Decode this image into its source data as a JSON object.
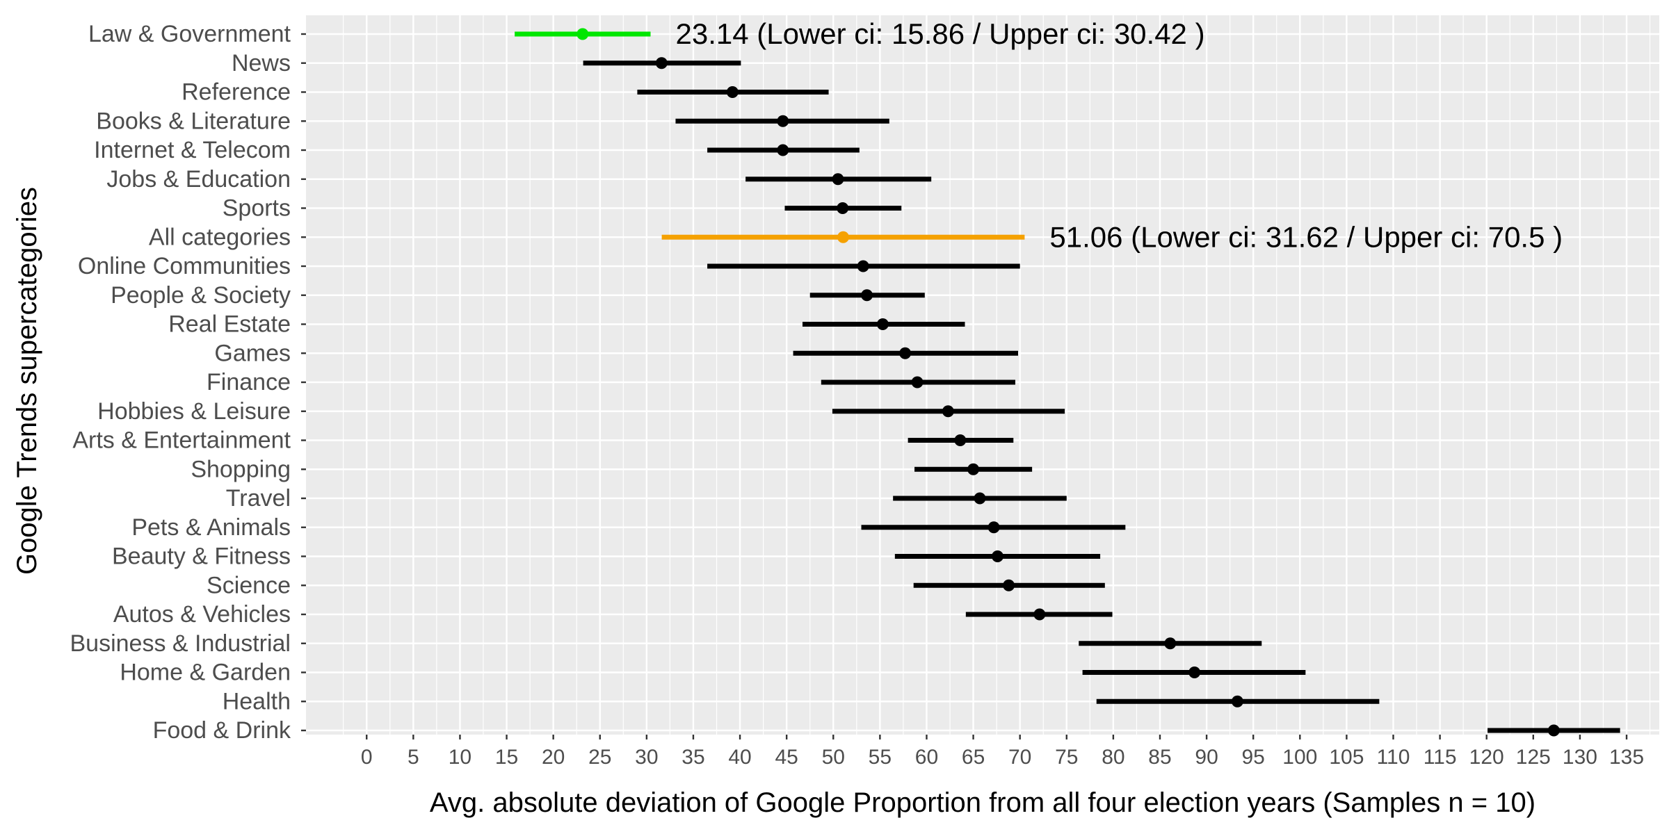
{
  "chart_data": {
    "type": "errorbar",
    "orientation": "horizontal",
    "xlabel": "Avg. absolute deviation of Google Proportion from all four election years (Samples n = 10)",
    "ylabel": "Google Trends supercategories",
    "xlim": [
      -6.5,
      138.5
    ],
    "x_ticks": [
      0,
      5,
      10,
      15,
      20,
      25,
      30,
      35,
      40,
      45,
      50,
      55,
      60,
      65,
      70,
      75,
      80,
      85,
      90,
      95,
      100,
      105,
      110,
      115,
      120,
      125,
      130,
      135
    ],
    "grid": true,
    "colors": {
      "panel_background": "#ebebeb",
      "grid": "#ffffff",
      "default_series": "#000000",
      "highlight_law": "#00e600",
      "highlight_all": "#f5a100",
      "axis_text": "#4d4d4d",
      "tick": "#333333"
    },
    "categories": [
      {
        "name": "Law & Government",
        "mean": 23.14,
        "lower": 15.86,
        "upper": 30.42,
        "color": "#00e600"
      },
      {
        "name": "News",
        "mean": 31.6,
        "lower": 23.2,
        "upper": 40.1,
        "color": "#000000"
      },
      {
        "name": "Reference",
        "mean": 39.2,
        "lower": 29.0,
        "upper": 49.5,
        "color": "#000000"
      },
      {
        "name": "Books & Literature",
        "mean": 44.6,
        "lower": 33.1,
        "upper": 56.0,
        "color": "#000000"
      },
      {
        "name": "Internet & Telecom",
        "mean": 44.6,
        "lower": 36.5,
        "upper": 52.8,
        "color": "#000000"
      },
      {
        "name": "Jobs & Education",
        "mean": 50.5,
        "lower": 40.6,
        "upper": 60.5,
        "color": "#000000"
      },
      {
        "name": "Sports",
        "mean": 51.0,
        "lower": 44.8,
        "upper": 57.3,
        "color": "#000000"
      },
      {
        "name": "All categories",
        "mean": 51.06,
        "lower": 31.62,
        "upper": 70.5,
        "color": "#f5a100"
      },
      {
        "name": "Online Communities",
        "mean": 53.2,
        "lower": 36.5,
        "upper": 70.0,
        "color": "#000000"
      },
      {
        "name": "People & Society",
        "mean": 53.6,
        "lower": 47.5,
        "upper": 59.8,
        "color": "#000000"
      },
      {
        "name": "Real Estate",
        "mean": 55.3,
        "lower": 46.7,
        "upper": 64.1,
        "color": "#000000"
      },
      {
        "name": "Games",
        "mean": 57.7,
        "lower": 45.7,
        "upper": 69.8,
        "color": "#000000"
      },
      {
        "name": "Finance",
        "mean": 59.0,
        "lower": 48.7,
        "upper": 69.5,
        "color": "#000000"
      },
      {
        "name": "Hobbies & Leisure",
        "mean": 62.3,
        "lower": 49.9,
        "upper": 74.8,
        "color": "#000000"
      },
      {
        "name": "Arts & Entertainment",
        "mean": 63.6,
        "lower": 58.0,
        "upper": 69.3,
        "color": "#000000"
      },
      {
        "name": "Shopping",
        "mean": 65.0,
        "lower": 58.7,
        "upper": 71.3,
        "color": "#000000"
      },
      {
        "name": "Travel",
        "mean": 65.7,
        "lower": 56.4,
        "upper": 75.0,
        "color": "#000000"
      },
      {
        "name": "Pets & Animals",
        "mean": 67.2,
        "lower": 53.0,
        "upper": 81.3,
        "color": "#000000"
      },
      {
        "name": "Beauty & Fitness",
        "mean": 67.6,
        "lower": 56.6,
        "upper": 78.6,
        "color": "#000000"
      },
      {
        "name": "Science",
        "mean": 68.8,
        "lower": 58.6,
        "upper": 79.1,
        "color": "#000000"
      },
      {
        "name": "Autos & Vehicles",
        "mean": 72.1,
        "lower": 64.2,
        "upper": 79.9,
        "color": "#000000"
      },
      {
        "name": "Business & Industrial",
        "mean": 86.1,
        "lower": 76.3,
        "upper": 95.9,
        "color": "#000000"
      },
      {
        "name": "Home & Garden",
        "mean": 88.7,
        "lower": 76.7,
        "upper": 100.6,
        "color": "#000000"
      },
      {
        "name": "Health",
        "mean": 93.3,
        "lower": 78.2,
        "upper": 108.5,
        "color": "#000000"
      },
      {
        "name": "Food & Drink",
        "mean": 127.2,
        "lower": 120.1,
        "upper": 134.3,
        "color": "#000000"
      }
    ],
    "annotations": [
      {
        "category": "Law & Government",
        "text": "23.14 (Lower ci: 15.86 / Upper ci: 30.42 )"
      },
      {
        "category": "All categories",
        "text": "51.06 (Lower ci: 31.62 / Upper ci: 70.5 )"
      }
    ]
  }
}
